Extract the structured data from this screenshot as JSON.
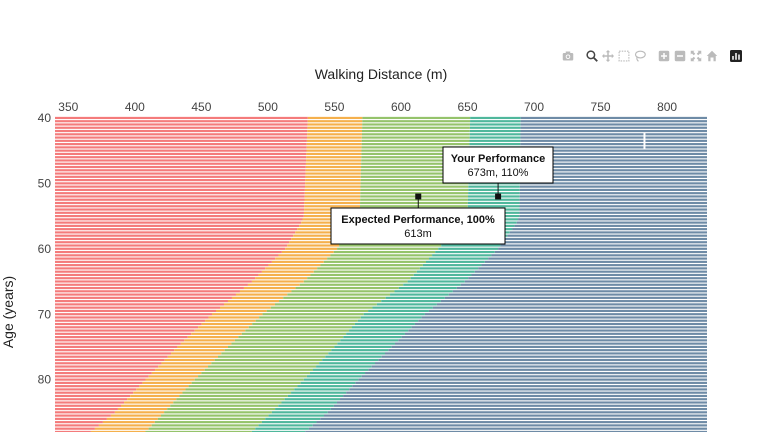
{
  "toolbar": {
    "buttons": [
      {
        "name": "camera-icon",
        "title": "Download plot as a png",
        "group": 1
      },
      {
        "name": "zoom-icon",
        "title": "Zoom",
        "group": 2,
        "active": true
      },
      {
        "name": "pan-icon",
        "title": "Pan",
        "group": 2
      },
      {
        "name": "box-select-icon",
        "title": "Box Select",
        "group": 2
      },
      {
        "name": "lasso-select-icon",
        "title": "Lasso Select",
        "group": 2
      },
      {
        "name": "zoom-in-icon",
        "title": "Zoom in",
        "group": 3
      },
      {
        "name": "zoom-out-icon",
        "title": "Zoom out",
        "group": 3
      },
      {
        "name": "autoscale-icon",
        "title": "Autoscale",
        "group": 3
      },
      {
        "name": "reset-axes-icon",
        "title": "Reset axes",
        "group": 3
      },
      {
        "name": "plotly-logo-icon",
        "title": "Produced with Plotly",
        "group": 4
      }
    ]
  },
  "colors": {
    "zone1": "#f47b7b",
    "zone2": "#f5b04c",
    "zone3": "#95c36b",
    "zone4": "#4fb79c",
    "zone5": "#6e8ba6",
    "separator": "#ffffff",
    "marker": "#111111"
  },
  "chart_data": {
    "type": "bar",
    "orientation": "horizontal-stacked",
    "xlabel": "Walking Distance (m)",
    "ylabel": "Age (years)",
    "x_axis_side": "top",
    "xlim": [
      340,
      830
    ],
    "ylim": [
      40,
      88
    ],
    "y_reversed": true,
    "xticks": [
      350,
      400,
      450,
      500,
      550,
      600,
      650,
      700,
      750,
      800
    ],
    "yticks": [
      40,
      50,
      60,
      70,
      80
    ],
    "age_from": 40,
    "age_to": 88,
    "age_step": 0.5,
    "x_start": 340,
    "x_end": 830,
    "zone_boundaries": [
      {
        "age": 40,
        "b1": 530,
        "b2": 571,
        "b3": 652,
        "b4": 690
      },
      {
        "age": 55,
        "b1": 527,
        "b2": 569,
        "b3": 650,
        "b4": 689
      },
      {
        "age": 56,
        "b1": 525,
        "b2": 564,
        "b3": 646,
        "b4": 687
      },
      {
        "age": 60,
        "b1": 513,
        "b2": 552,
        "b3": 628,
        "b4": 673
      },
      {
        "age": 65,
        "b1": 488,
        "b2": 527,
        "b3": 605,
        "b4": 648
      },
      {
        "age": 70,
        "b1": 458,
        "b2": 496,
        "b3": 572,
        "b4": 618
      },
      {
        "age": 75,
        "b1": 432,
        "b2": 470,
        "b3": 550,
        "b4": 593
      },
      {
        "age": 80,
        "b1": 408,
        "b2": 445,
        "b3": 527,
        "b4": 568
      },
      {
        "age": 85,
        "b1": 385,
        "b2": 422,
        "b3": 503,
        "b4": 545
      },
      {
        "age": 88,
        "b1": 367,
        "b2": 408,
        "b3": 488,
        "b4": 528
      }
    ],
    "annotations": [
      {
        "name": "your-performance",
        "title": "Your Performance",
        "text": "673m, 110%",
        "x": 673,
        "y": 52
      },
      {
        "name": "expected-performance",
        "title": "Expected Performance, 100%",
        "text": "613m",
        "x": 613,
        "y": 52
      }
    ],
    "cursor_mark": {
      "x": 783,
      "y": 43.5
    }
  }
}
